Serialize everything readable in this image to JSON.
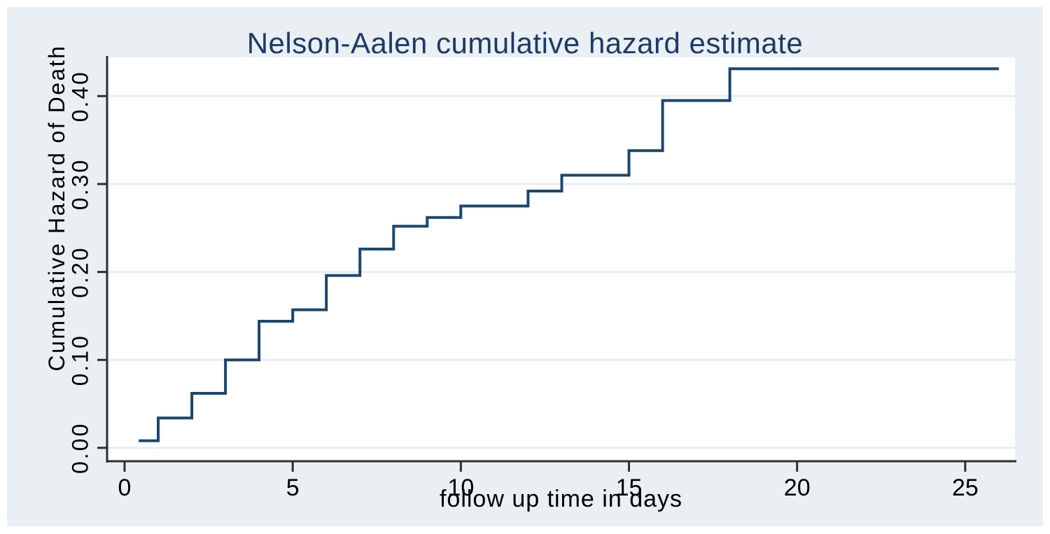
{
  "page": {
    "background": "#ffffff",
    "panel_background": "#e9eff2"
  },
  "chart_data": {
    "type": "line",
    "subtype": "step-function",
    "title": "Nelson-Aalen cumulative hazard estimate",
    "xlabel": "follow up time in days",
    "ylabel": "Cumulative Hazard of Death",
    "x_ticks": [
      0,
      5,
      10,
      15,
      20,
      25
    ],
    "y_ticks": [
      "0.00",
      "0.10",
      "0.20",
      "0.30",
      "0.40"
    ],
    "y_tick_values": [
      0.0,
      0.1,
      0.2,
      0.3,
      0.4
    ],
    "xlim": [
      -0.52,
      26.48
    ],
    "ylim": [
      -0.016,
      0.444
    ],
    "grid": true,
    "legend": "none",
    "series": [
      {
        "name": "Nelson-Aalen cumulative hazard",
        "color": "#1a476f",
        "step_points": [
          [
            0.42,
            0.008
          ],
          [
            1,
            0.034
          ],
          [
            2,
            0.062
          ],
          [
            3,
            0.1
          ],
          [
            4,
            0.144
          ],
          [
            5,
            0.157
          ],
          [
            6,
            0.196
          ],
          [
            7,
            0.226
          ],
          [
            8,
            0.252
          ],
          [
            9,
            0.262
          ],
          [
            10,
            0.275
          ],
          [
            12,
            0.292
          ],
          [
            13,
            0.31
          ],
          [
            15,
            0.338
          ],
          [
            16,
            0.395
          ],
          [
            18,
            0.431
          ]
        ],
        "end_x": 26
      }
    ],
    "colors": {
      "title": "#1e3a66",
      "axis_line": "#2f2f2f",
      "grid_line": "#e6eef3",
      "tick_text": "#000000",
      "plot_background": "#ffffff"
    }
  }
}
